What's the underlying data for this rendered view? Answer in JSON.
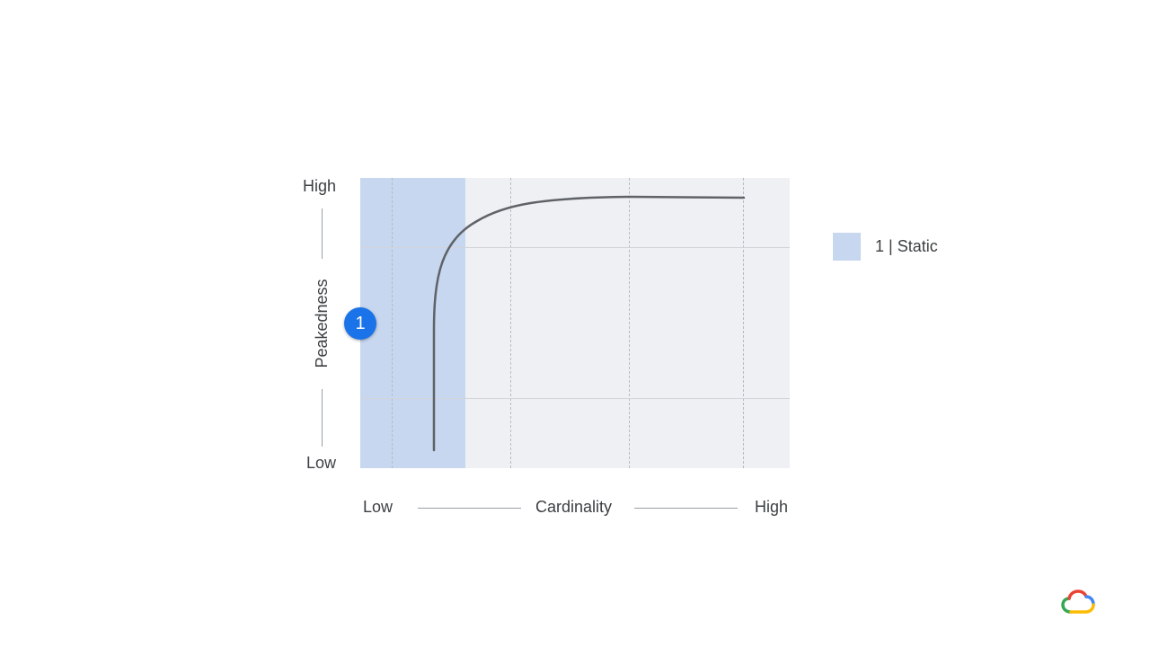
{
  "diagram": {
    "y_axis": {
      "label": "Peakedness",
      "high": "High",
      "low": "Low"
    },
    "x_axis": {
      "label": "Cardinality",
      "low": "Low",
      "high": "High"
    },
    "marker": {
      "number": "1"
    },
    "legend": {
      "items": [
        {
          "label": "1 | Static",
          "color": "#c6d7ef"
        }
      ]
    },
    "colors": {
      "plot_background": "#eff0f4",
      "static_region": "#c6d7ef",
      "curve": "#5f6368",
      "marker": "#1a73e8"
    },
    "curve_shape": "saturating rise: steep near low cardinality, flattening toward high peakedness"
  },
  "branding": {
    "logo_icon": "google-cloud-icon"
  }
}
